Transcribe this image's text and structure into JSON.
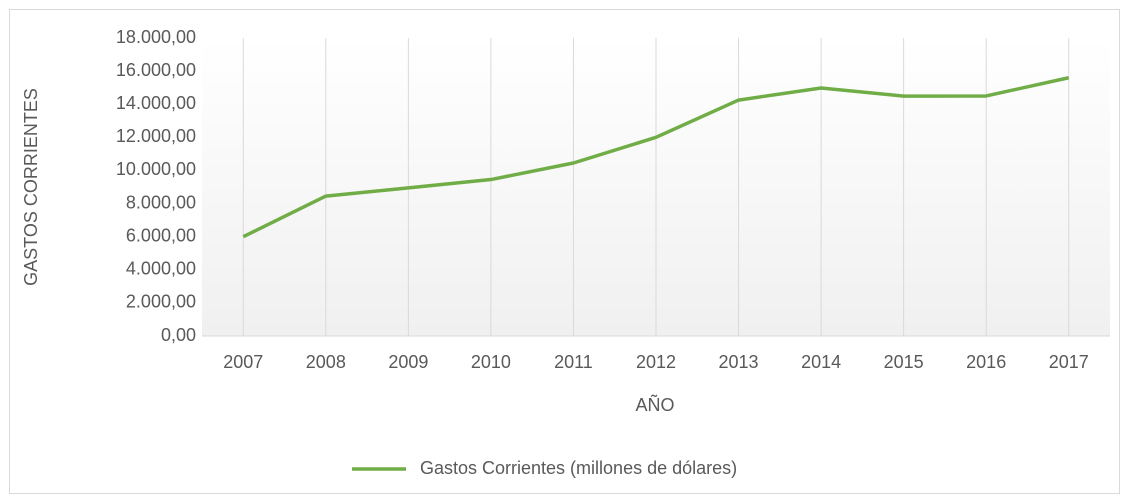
{
  "chart_data": {
    "type": "line",
    "x_label": "AÑO",
    "y_label": "GASTOS CORRIENTES",
    "categories": [
      "2007",
      "2008",
      "2009",
      "2010",
      "2011",
      "2012",
      "2013",
      "2014",
      "2015",
      "2016",
      "2017"
    ],
    "series": [
      {
        "name": "Gastos Corrientes (millones de dólares)",
        "color": "#70ad47",
        "values": [
          6000,
          8450,
          8950,
          9450,
          10450,
          12000,
          14250,
          14980,
          14490,
          14500,
          15600
        ]
      }
    ],
    "ylim": [
      0,
      18000
    ],
    "yticks": [
      {
        "value": 0,
        "label": "0,00"
      },
      {
        "value": 2000,
        "label": "2.000,00"
      },
      {
        "value": 4000,
        "label": "4.000,00"
      },
      {
        "value": 6000,
        "label": "6.000,00"
      },
      {
        "value": 8000,
        "label": "8.000,00"
      },
      {
        "value": 10000,
        "label": "10.000,00"
      },
      {
        "value": 12000,
        "label": "12.000,00"
      },
      {
        "value": 14000,
        "label": "14.000,00"
      },
      {
        "value": 16000,
        "label": "16.000,00"
      },
      {
        "value": 18000,
        "label": "18.000,00"
      }
    ],
    "grid": false,
    "xgrid": true,
    "legend": "bottom"
  }
}
